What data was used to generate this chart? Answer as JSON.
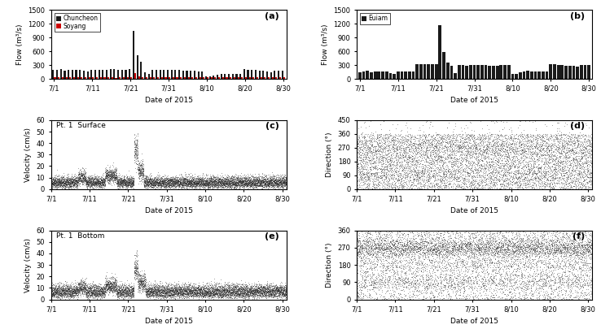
{
  "panel_a": {
    "label": "(a)",
    "ylabel": "Flow (m³/s)",
    "xlabel": "Date of 2015",
    "ylim": [
      0,
      1500
    ],
    "yticks": [
      0,
      300,
      600,
      900,
      1200,
      1500
    ],
    "xtick_labels": [
      "7/1",
      "7/11",
      "7/21",
      "7/31",
      "8/10",
      "8/20",
      "8/30"
    ],
    "legend_labels": [
      "Chuncheon",
      "Soyang"
    ],
    "legend_colors": [
      "#1a1a1a",
      "#cc0000"
    ]
  },
  "panel_b": {
    "label": "(b)",
    "ylabel": "Flow (m³/s)",
    "xlabel": "Date of 2015",
    "ylim": [
      0,
      1500
    ],
    "yticks": [
      0,
      300,
      600,
      900,
      1200,
      1500
    ],
    "xtick_labels": [
      "7/1",
      "7/11",
      "7/21",
      "7/31",
      "8/10",
      "8/20",
      "8/30"
    ],
    "legend_labels": [
      "Euiam"
    ],
    "legend_colors": [
      "#1a1a1a"
    ]
  },
  "panel_c": {
    "label": "(c)",
    "panel_label": "Pt. 1  Surface",
    "ylabel": "Velocity (cm/s)",
    "xlabel": "Date of 2015",
    "ylim": [
      0,
      60
    ],
    "yticks": [
      0,
      10,
      20,
      30,
      40,
      50,
      60
    ],
    "xtick_labels": [
      "7/1",
      "7/11",
      "7/21",
      "7/31",
      "8/10",
      "8/20",
      "8/30"
    ]
  },
  "panel_d": {
    "label": "(d)",
    "ylabel": "Direction (°)",
    "xlabel": "Date of 2015",
    "ylim": [
      0,
      450
    ],
    "yticks": [
      0,
      90,
      180,
      270,
      360,
      450
    ],
    "xtick_labels": [
      "7/1",
      "7/11",
      "7/21",
      "7/31",
      "8/10",
      "8/20",
      "8/30"
    ]
  },
  "panel_e": {
    "label": "(e)",
    "panel_label": "Pt. 1  Bottom",
    "ylabel": "Velocity (cm/s)",
    "xlabel": "Date of 2015",
    "ylim": [
      0,
      60
    ],
    "yticks": [
      0,
      10,
      20,
      30,
      40,
      50,
      60
    ],
    "xtick_labels": [
      "7/1",
      "7/11",
      "7/21",
      "7/31",
      "8/10",
      "8/20",
      "8/30"
    ]
  },
  "panel_f": {
    "label": "(f)",
    "ylabel": "Direction (°)",
    "xlabel": "Date of 2015",
    "ylim": [
      0,
      360
    ],
    "yticks": [
      0,
      90,
      180,
      270,
      360
    ],
    "xtick_labels": [
      "7/1",
      "7/11",
      "7/21",
      "7/31",
      "8/10",
      "8/20",
      "8/30"
    ]
  },
  "dot_color": "#222222",
  "dot_alpha": 0.3,
  "dot_size": 0.5,
  "bar_color_chuncheon": "#1a1a1a",
  "bar_color_soyang": "#cc0000",
  "bar_color_euiam": "#1a1a1a",
  "background_color": "#ffffff",
  "n_days": 61,
  "chuncheon_flow": [
    200,
    200,
    210,
    185,
    200,
    195,
    195,
    200,
    175,
    165,
    200,
    200,
    200,
    195,
    200,
    210,
    210,
    200,
    200,
    195,
    205,
    1050,
    520,
    380,
    140,
    100,
    200,
    200,
    195,
    195,
    190,
    190,
    190,
    190,
    185,
    180,
    175,
    170,
    165,
    165,
    50,
    50,
    75,
    85,
    100,
    100,
    100,
    105,
    105,
    110,
    210,
    200,
    195,
    190,
    185,
    170,
    155,
    150,
    185,
    185,
    185
  ],
  "soyang_flow": [
    30,
    30,
    30,
    30,
    30,
    28,
    28,
    30,
    28,
    28,
    30,
    30,
    30,
    28,
    28,
    30,
    25,
    28,
    28,
    28,
    28,
    120,
    55,
    40,
    30,
    28,
    28,
    28,
    28,
    28,
    28,
    28,
    28,
    28,
    28,
    28,
    28,
    28,
    28,
    28,
    28,
    28,
    28,
    28,
    28,
    28,
    28,
    28,
    28,
    28,
    30,
    30,
    28,
    28,
    28,
    28,
    28,
    28,
    28,
    28,
    28
  ],
  "euiam_flow": [
    150,
    160,
    170,
    150,
    160,
    155,
    155,
    155,
    125,
    115,
    155,
    160,
    155,
    155,
    155,
    320,
    325,
    320,
    315,
    310,
    320,
    1175,
    580,
    345,
    280,
    130,
    295,
    295,
    290,
    295,
    295,
    295,
    295,
    295,
    290,
    285,
    290,
    295,
    295,
    295,
    115,
    115,
    150,
    165,
    170,
    165,
    155,
    160,
    160,
    155,
    315,
    310,
    295,
    295,
    290,
    280,
    275,
    270,
    295,
    295,
    295
  ]
}
